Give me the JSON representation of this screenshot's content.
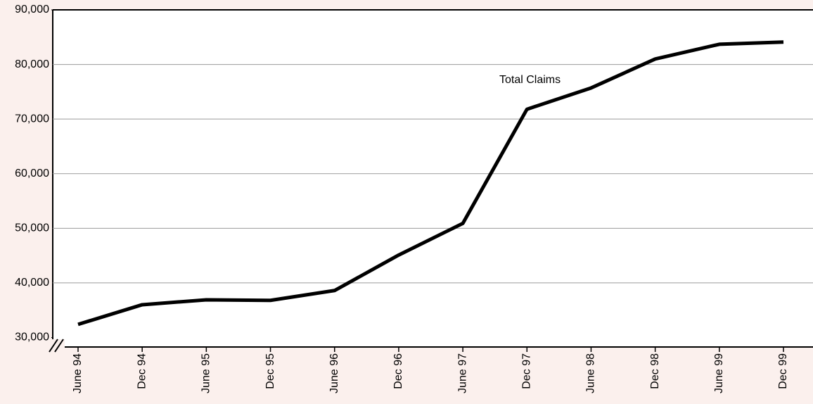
{
  "chart_data": {
    "type": "line",
    "categories": [
      "June 94",
      "Dec 94",
      "June 95",
      "Dec 95",
      "June 96",
      "Dec 96",
      "June 97",
      "Dec 97",
      "June 98",
      "Dec 98",
      "June 99",
      "Dec 99"
    ],
    "series": [
      {
        "name": "Total Claims",
        "color": "#000000",
        "values": [
          32400,
          36000,
          36900,
          36800,
          38600,
          45100,
          50900,
          71800,
          75700,
          81000,
          83700,
          84100
        ]
      }
    ],
    "ylim": [
      30000,
      90000
    ],
    "yticks": [
      {
        "value": 30000,
        "label": "30,000"
      },
      {
        "value": 40000,
        "label": "40,000"
      },
      {
        "value": 50000,
        "label": "50,000"
      },
      {
        "value": 60000,
        "label": "60,000"
      },
      {
        "value": 70000,
        "label": "70,000"
      },
      {
        "value": 80000,
        "label": "80,000"
      },
      {
        "value": 90000,
        "label": "90,000"
      }
    ],
    "grid": true
  }
}
